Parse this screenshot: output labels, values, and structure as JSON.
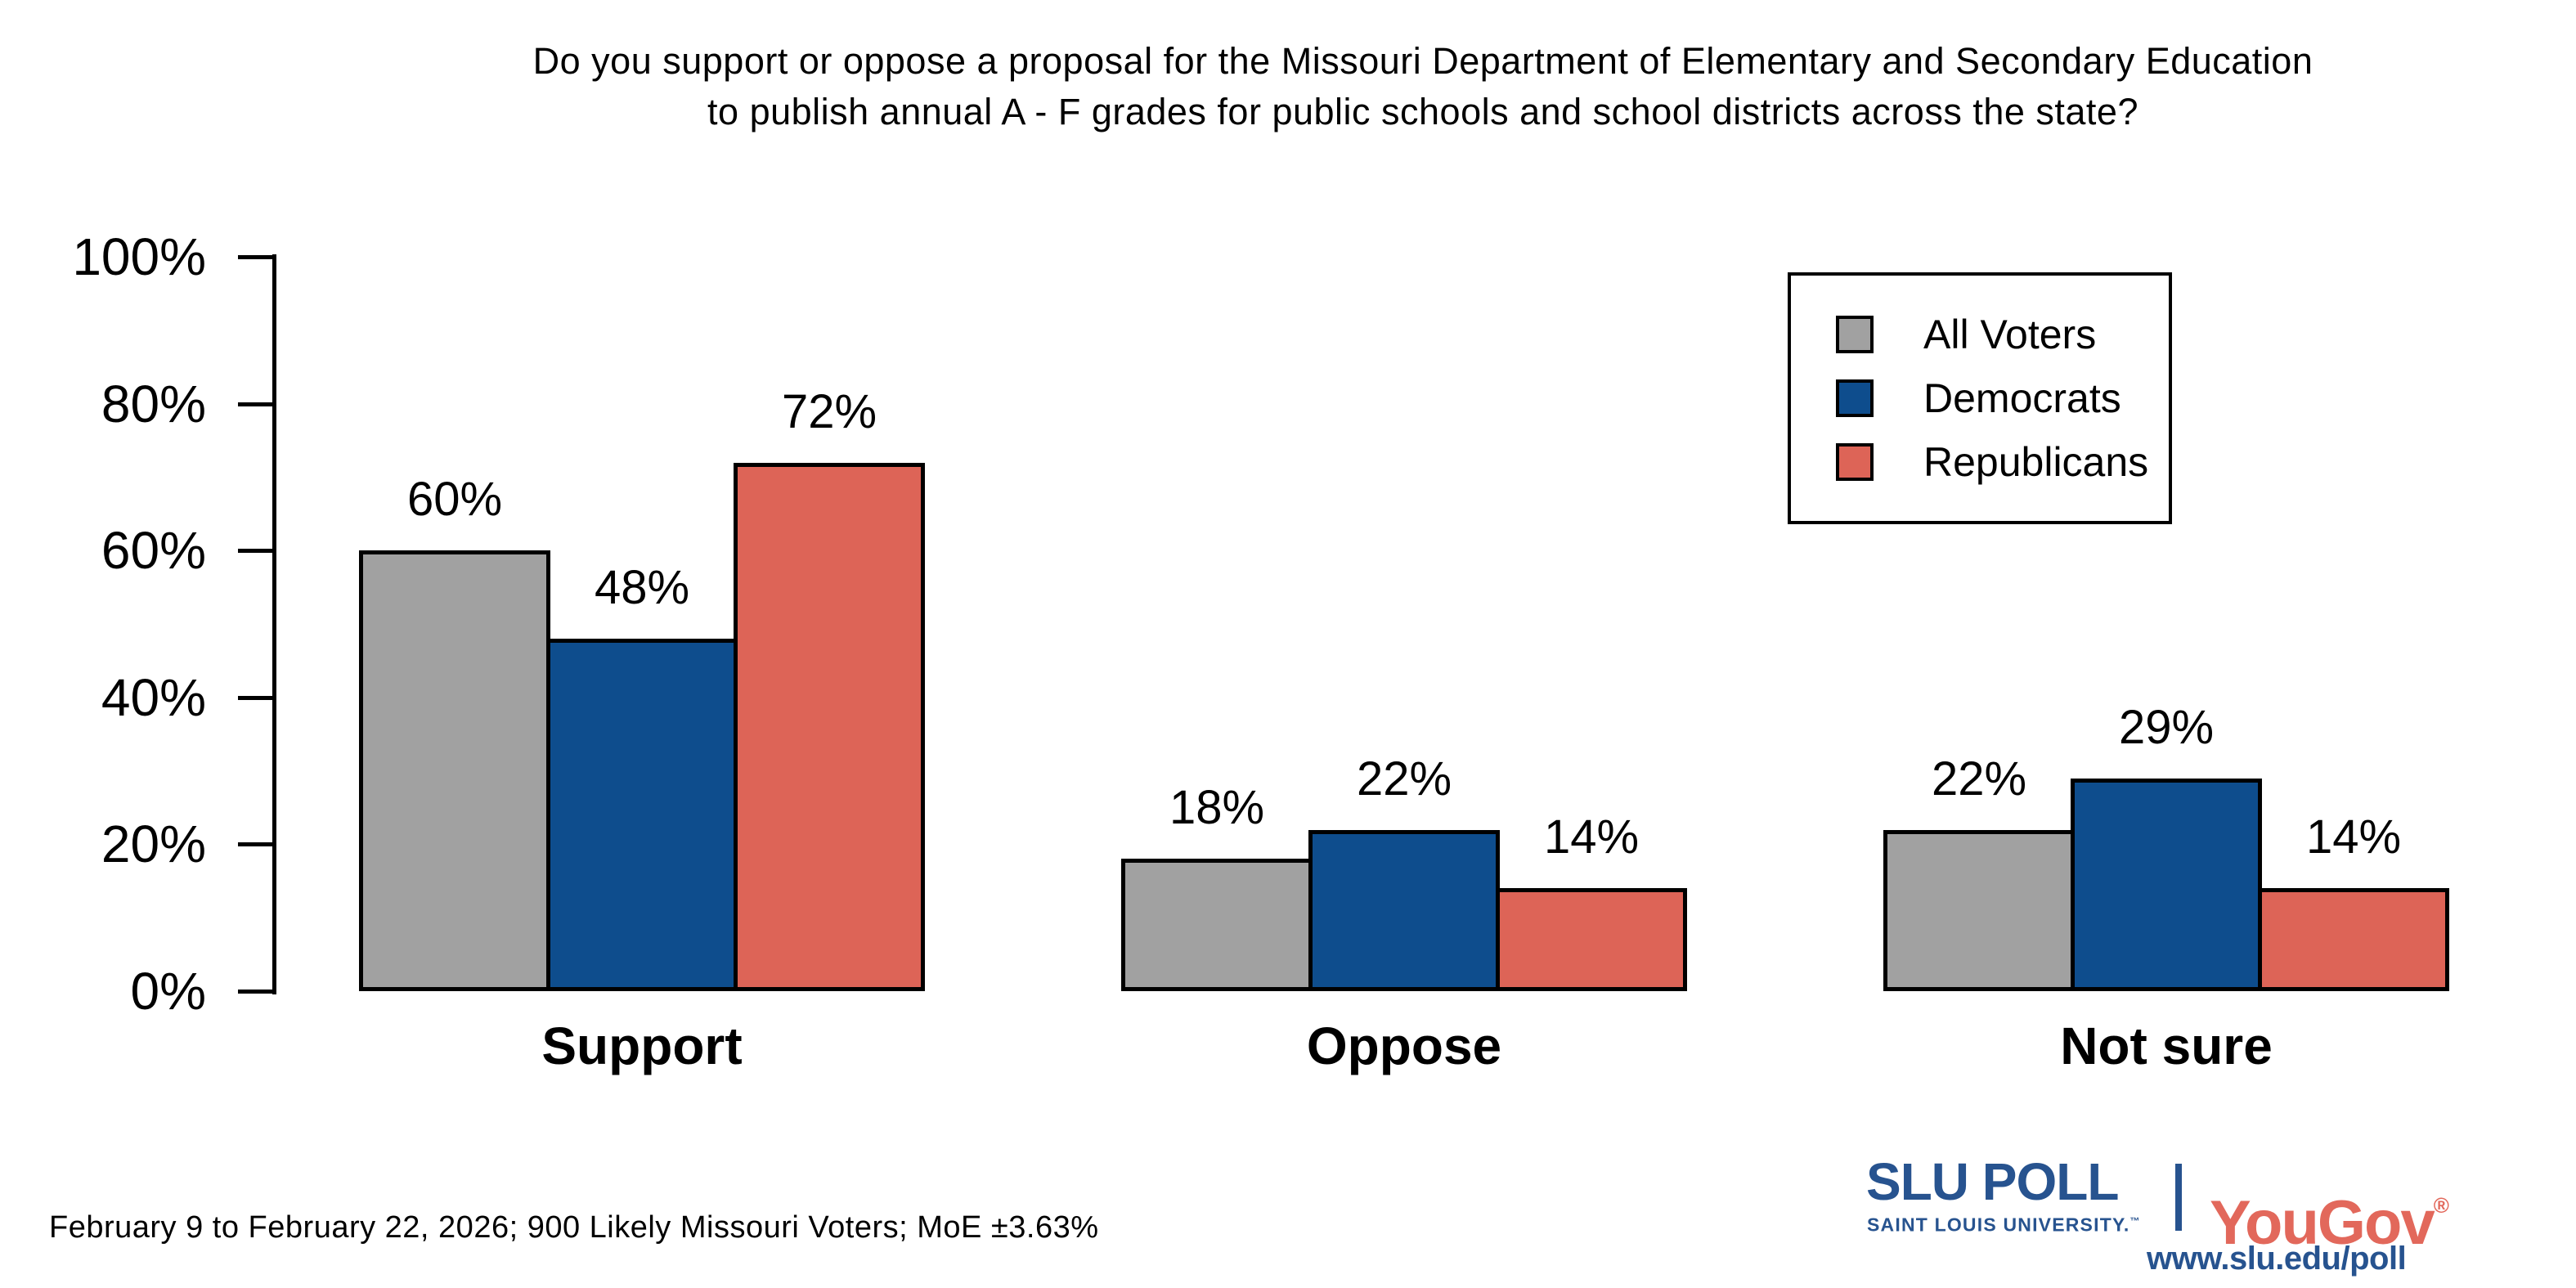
{
  "title": {
    "line1": "Do you support or oppose a proposal for the Missouri Department of Elementary and Secondary Education",
    "line2": "to publish annual A - F grades for public schools and school districts across the state?"
  },
  "chart_data": {
    "type": "bar",
    "categories": [
      "Support",
      "Oppose",
      "Not sure"
    ],
    "series": [
      {
        "name": "All Voters",
        "color": "#a1a1a1",
        "values": [
          60,
          18,
          22
        ]
      },
      {
        "name": "Democrats",
        "color": "#0e4d8d",
        "values": [
          48,
          22,
          29
        ]
      },
      {
        "name": "Republicans",
        "color": "#dd6457",
        "values": [
          72,
          14,
          14
        ]
      }
    ],
    "value_suffix": "%",
    "y_tick_labels": [
      "100%",
      "80%",
      "60%",
      "40%",
      "20%",
      "0%"
    ],
    "ylim": [
      0,
      100
    ],
    "grid": false,
    "legend_position": "top-right",
    "bar_border_color": "#000000"
  },
  "footer": {
    "source_note": "February 9 to February 22, 2026; 900 Likely Missouri Voters; MoE ±3.63%"
  },
  "branding": {
    "slu_poll": "SLU POLL",
    "slu_sub": "SAINT LOUIS UNIVERSITY.",
    "tm": "™",
    "divider": "|",
    "yougov": "YouGov",
    "reg": "®",
    "url": "www.slu.edu/poll",
    "slu_blue": "#27538f",
    "yougov_red": "#e2685b"
  }
}
